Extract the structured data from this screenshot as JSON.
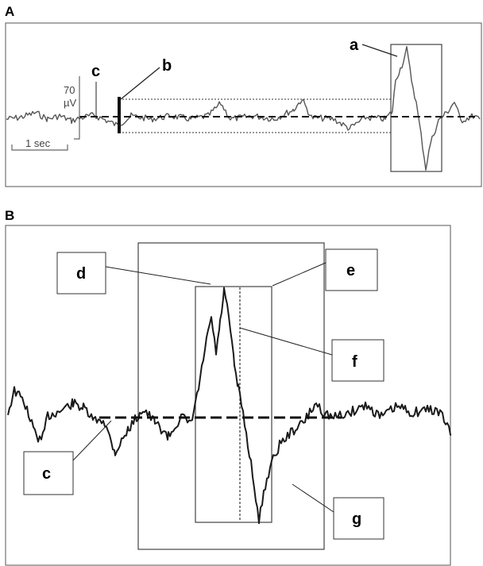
{
  "panels": {
    "A": {
      "title": "A",
      "scale_bar": {
        "amplitude_value": "70",
        "amplitude_unit": "µV",
        "time": "1 sec"
      },
      "labels": {
        "a": "a",
        "b": "b",
        "c": "c"
      }
    },
    "B": {
      "title": "B",
      "labels": {
        "c": "c",
        "d": "d",
        "e": "e",
        "f": "f",
        "g": "g"
      }
    }
  },
  "colors": {
    "trace_a": "#555555",
    "trace_b": "#1a1a1a",
    "frame": "#444444",
    "dashed": "#111111"
  }
}
